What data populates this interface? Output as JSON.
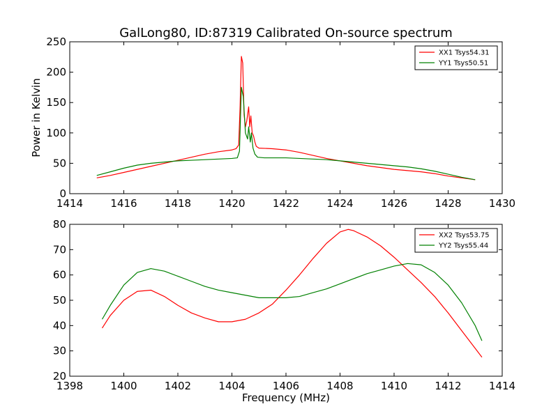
{
  "figure": {
    "title": "GalLong80, ID:87319 Calibrated On-source spectrum"
  },
  "chart_data": [
    {
      "type": "line",
      "title": "GalLong80, ID:87319 Calibrated On-source spectrum",
      "xlabel": "",
      "ylabel": "Power in Kelvin",
      "xlim": [
        1414,
        1430
      ],
      "ylim": [
        0,
        250
      ],
      "xticks": [
        "1414",
        "1416",
        "1418",
        "1420",
        "1422",
        "1424",
        "1426",
        "1428",
        "1430"
      ],
      "yticks": [
        "0",
        "50",
        "100",
        "150",
        "200",
        "250"
      ],
      "legend_position": "top-right",
      "grid": false,
      "series": [
        {
          "name": "XX1 Tsys54.31",
          "color": "#ff0000",
          "x": [
            1415.0,
            1415.5,
            1416.0,
            1416.5,
            1417.0,
            1417.5,
            1418.0,
            1418.5,
            1419.0,
            1419.5,
            1420.0,
            1420.15,
            1420.25,
            1420.3,
            1420.35,
            1420.4,
            1420.45,
            1420.5,
            1420.55,
            1420.62,
            1420.66,
            1420.7,
            1420.75,
            1420.8,
            1420.85,
            1420.9,
            1421.0,
            1421.5,
            1422.0,
            1422.5,
            1423.0,
            1423.5,
            1424.0,
            1424.5,
            1425.0,
            1425.5,
            1426.0,
            1426.5,
            1427.0,
            1427.5,
            1428.0,
            1428.5,
            1429.0
          ],
          "y": [
            26,
            30,
            35,
            40,
            45,
            50,
            55,
            60,
            65,
            69,
            72,
            74,
            80,
            140,
            226,
            215,
            130,
            110,
            120,
            143,
            110,
            128,
            100,
            95,
            85,
            78,
            75,
            74,
            72,
            68,
            63,
            58,
            54,
            50,
            46,
            43,
            40,
            38,
            36,
            33,
            29,
            26,
            23
          ]
        },
        {
          "name": "YY1 Tsys50.51",
          "color": "#008000",
          "x": [
            1415.0,
            1415.5,
            1416.0,
            1416.5,
            1417.0,
            1417.5,
            1418.0,
            1418.5,
            1419.0,
            1419.5,
            1420.0,
            1420.2,
            1420.28,
            1420.35,
            1420.42,
            1420.5,
            1420.58,
            1420.62,
            1420.68,
            1420.72,
            1420.78,
            1420.85,
            1420.95,
            1421.2,
            1421.5,
            1422.0,
            1422.5,
            1423.0,
            1423.5,
            1424.0,
            1424.5,
            1425.0,
            1425.5,
            1426.0,
            1426.5,
            1427.0,
            1427.5,
            1428.0,
            1428.5,
            1429.0
          ],
          "y": [
            30,
            36,
            42,
            47,
            50,
            52,
            54,
            55,
            56,
            57,
            58,
            59,
            70,
            175,
            160,
            100,
            90,
            110,
            85,
            100,
            75,
            65,
            60,
            59,
            59,
            59,
            58,
            57,
            56,
            54,
            52,
            50,
            48,
            46,
            44,
            41,
            37,
            32,
            27,
            23
          ]
        }
      ]
    },
    {
      "type": "line",
      "title": "",
      "xlabel": "Frequency (MHz)",
      "ylabel": "",
      "xlim": [
        1398,
        1414
      ],
      "ylim": [
        20,
        80
      ],
      "xticks": [
        "1398",
        "1400",
        "1402",
        "1404",
        "1406",
        "1408",
        "1410",
        "1412",
        "1414"
      ],
      "yticks": [
        "20",
        "30",
        "40",
        "50",
        "60",
        "70",
        "80"
      ],
      "legend_position": "top-right",
      "grid": false,
      "series": [
        {
          "name": "XX2 Tsys53.75",
          "color": "#ff0000",
          "x": [
            1399.2,
            1399.5,
            1400.0,
            1400.5,
            1401.0,
            1401.5,
            1402.0,
            1402.5,
            1403.0,
            1403.5,
            1404.0,
            1404.5,
            1405.0,
            1405.5,
            1406.0,
            1406.5,
            1407.0,
            1407.5,
            1408.0,
            1408.3,
            1408.5,
            1409.0,
            1409.5,
            1410.0,
            1410.5,
            1411.0,
            1411.5,
            1412.0,
            1412.5,
            1413.0,
            1413.25
          ],
          "y": [
            39,
            44,
            50,
            53.5,
            54,
            51.5,
            48,
            45,
            43,
            41.5,
            41.5,
            42.5,
            45,
            48.5,
            54,
            60,
            66.5,
            72.5,
            77,
            78,
            77.5,
            75,
            71.5,
            67,
            62,
            57,
            51.5,
            45,
            38,
            31,
            27.5
          ]
        },
        {
          "name": "YY2 Tsys55.44",
          "color": "#008000",
          "x": [
            1399.2,
            1399.5,
            1400.0,
            1400.5,
            1401.0,
            1401.5,
            1402.0,
            1402.5,
            1403.0,
            1403.5,
            1404.0,
            1404.5,
            1405.0,
            1405.5,
            1406.0,
            1406.5,
            1407.0,
            1407.5,
            1408.0,
            1408.5,
            1409.0,
            1409.5,
            1410.0,
            1410.5,
            1411.0,
            1411.5,
            1412.0,
            1412.5,
            1413.0,
            1413.25
          ],
          "y": [
            42.5,
            48,
            56,
            61,
            62.5,
            61.5,
            59.5,
            57.5,
            55.5,
            54,
            53,
            52,
            51,
            51,
            51,
            51.5,
            53,
            54.5,
            56.5,
            58.5,
            60.5,
            62,
            63.5,
            64.5,
            64,
            61,
            56,
            49,
            40,
            34
          ]
        }
      ]
    }
  ]
}
